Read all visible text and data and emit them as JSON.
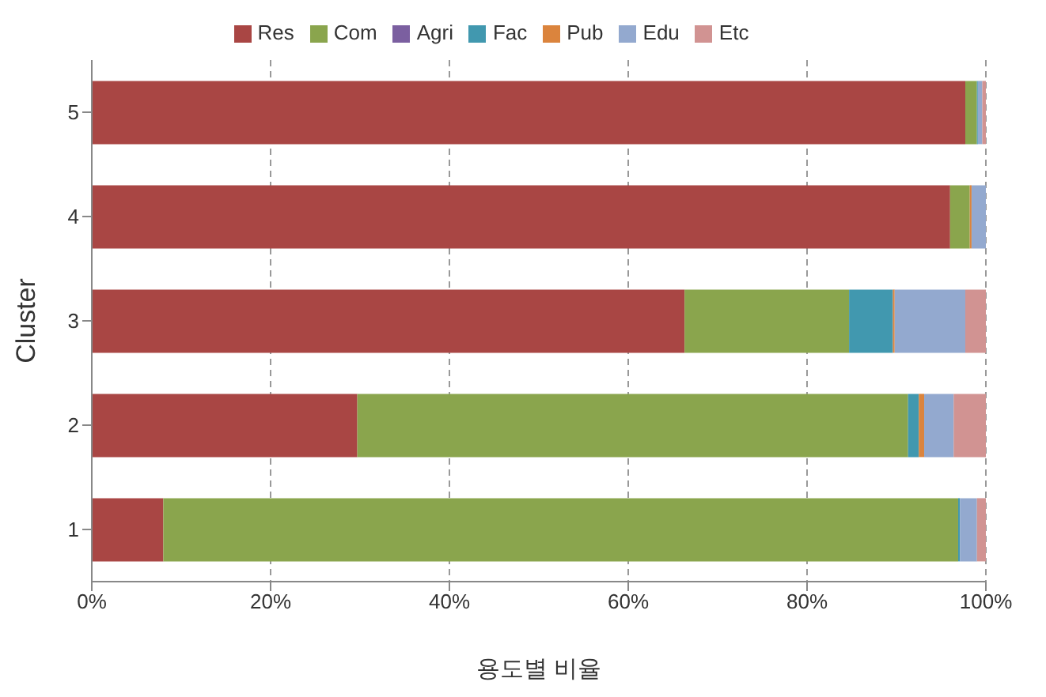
{
  "chart_data": {
    "type": "bar",
    "orientation": "horizontal",
    "stacked": true,
    "xlabel": "용도별 비율",
    "ylabel": "Cluster",
    "categories": [
      "5",
      "4",
      "3",
      "2",
      "1"
    ],
    "series": [
      {
        "name": "Res",
        "color": "#a94644",
        "values": [
          97.7,
          96.0,
          66.3,
          29.7,
          8.0
        ]
      },
      {
        "name": "Com",
        "color": "#8aa54d",
        "values": [
          1.3,
          2.2,
          18.4,
          61.6,
          88.9
        ]
      },
      {
        "name": "Agri",
        "color": "#7b5fa0",
        "values": [
          0,
          0,
          0,
          0,
          0
        ]
      },
      {
        "name": "Fac",
        "color": "#4198af",
        "values": [
          0.1,
          0,
          4.9,
          1.2,
          0.2
        ]
      },
      {
        "name": "Pub",
        "color": "#db843d",
        "values": [
          0,
          0.2,
          0.2,
          0.6,
          0
        ]
      },
      {
        "name": "Edu",
        "color": "#93a9cf",
        "values": [
          0.5,
          1.6,
          7.9,
          3.3,
          1.9
        ]
      },
      {
        "name": "Etc",
        "color": "#d19392",
        "values": [
          0.4,
          null,
          2.3,
          3.6,
          1.0
        ]
      }
    ],
    "xlim": [
      0,
      100
    ],
    "xticks": [
      {
        "value": 0,
        "label": "0%"
      },
      {
        "value": 20,
        "label": "20%"
      },
      {
        "value": 40,
        "label": "40%"
      },
      {
        "value": 60,
        "label": "60%"
      },
      {
        "value": 80,
        "label": "80%"
      },
      {
        "value": 100,
        "label": "100%"
      }
    ],
    "grid": "x",
    "legend": "top"
  }
}
